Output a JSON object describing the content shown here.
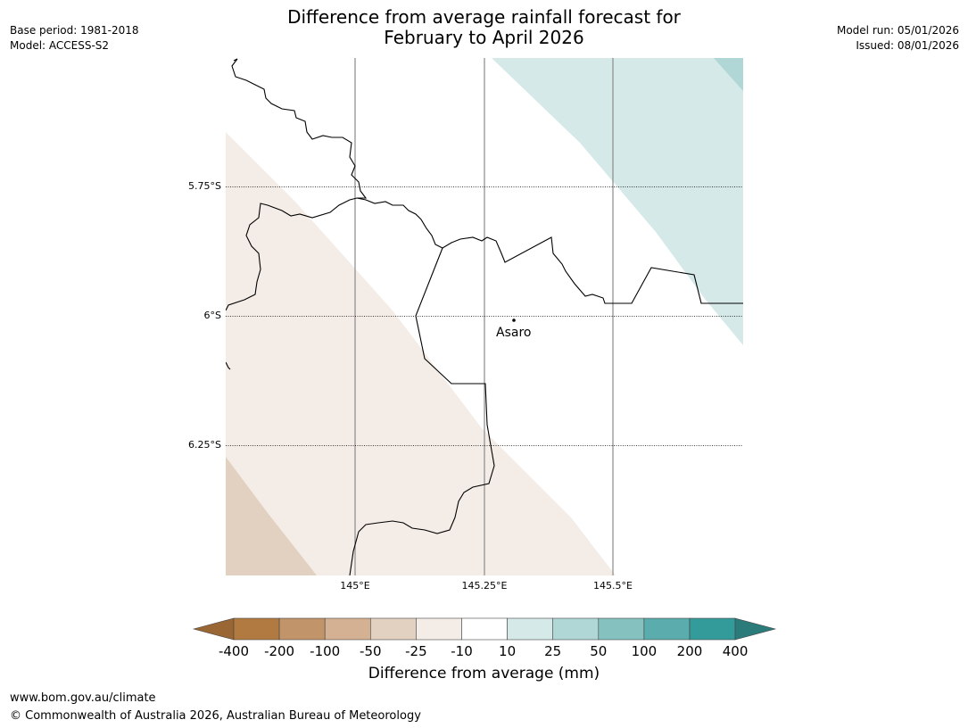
{
  "header": {
    "title_line1": "Difference from average rainfall forecast for",
    "title_line2": "February to April 2026",
    "base_period": "Base period: 1981-2018",
    "model": "Model: ACCESS-S2",
    "model_run": "Model run: 05/01/2026",
    "issued": "Issued: 08/01/2026"
  },
  "map": {
    "latitude_labels": [
      "5.75°S",
      "6°S",
      "6.25°S"
    ],
    "longitude_labels": [
      "145°E",
      "145.25°E",
      "145.5°E"
    ],
    "place_label": "Asaro",
    "colors": {
      "dry_light": "#f4ede7",
      "dry_medium": "#e2d0c0",
      "wet_light": "#d5e9e8",
      "wet_medium": "#b0d6d6"
    }
  },
  "legend": {
    "title": "Difference from average (mm)",
    "ticks": [
      "-400",
      "-200",
      "-100",
      "-50",
      "-25",
      "-10",
      "10",
      "25",
      "50",
      "100",
      "200",
      "400"
    ],
    "colors": [
      "#9a6634",
      "#b07a40",
      "#c29469",
      "#d4b193",
      "#e2d0c0",
      "#f4ede7",
      "#ffffff",
      "#d5e9e8",
      "#b0d6d6",
      "#84c1bf",
      "#5aadac",
      "#339b9a",
      "#2a7b79"
    ]
  },
  "footer": {
    "url": "www.bom.gov.au/climate",
    "copyright": "© Commonwealth of Australia 2026, Australian Bureau of Meteorology"
  }
}
